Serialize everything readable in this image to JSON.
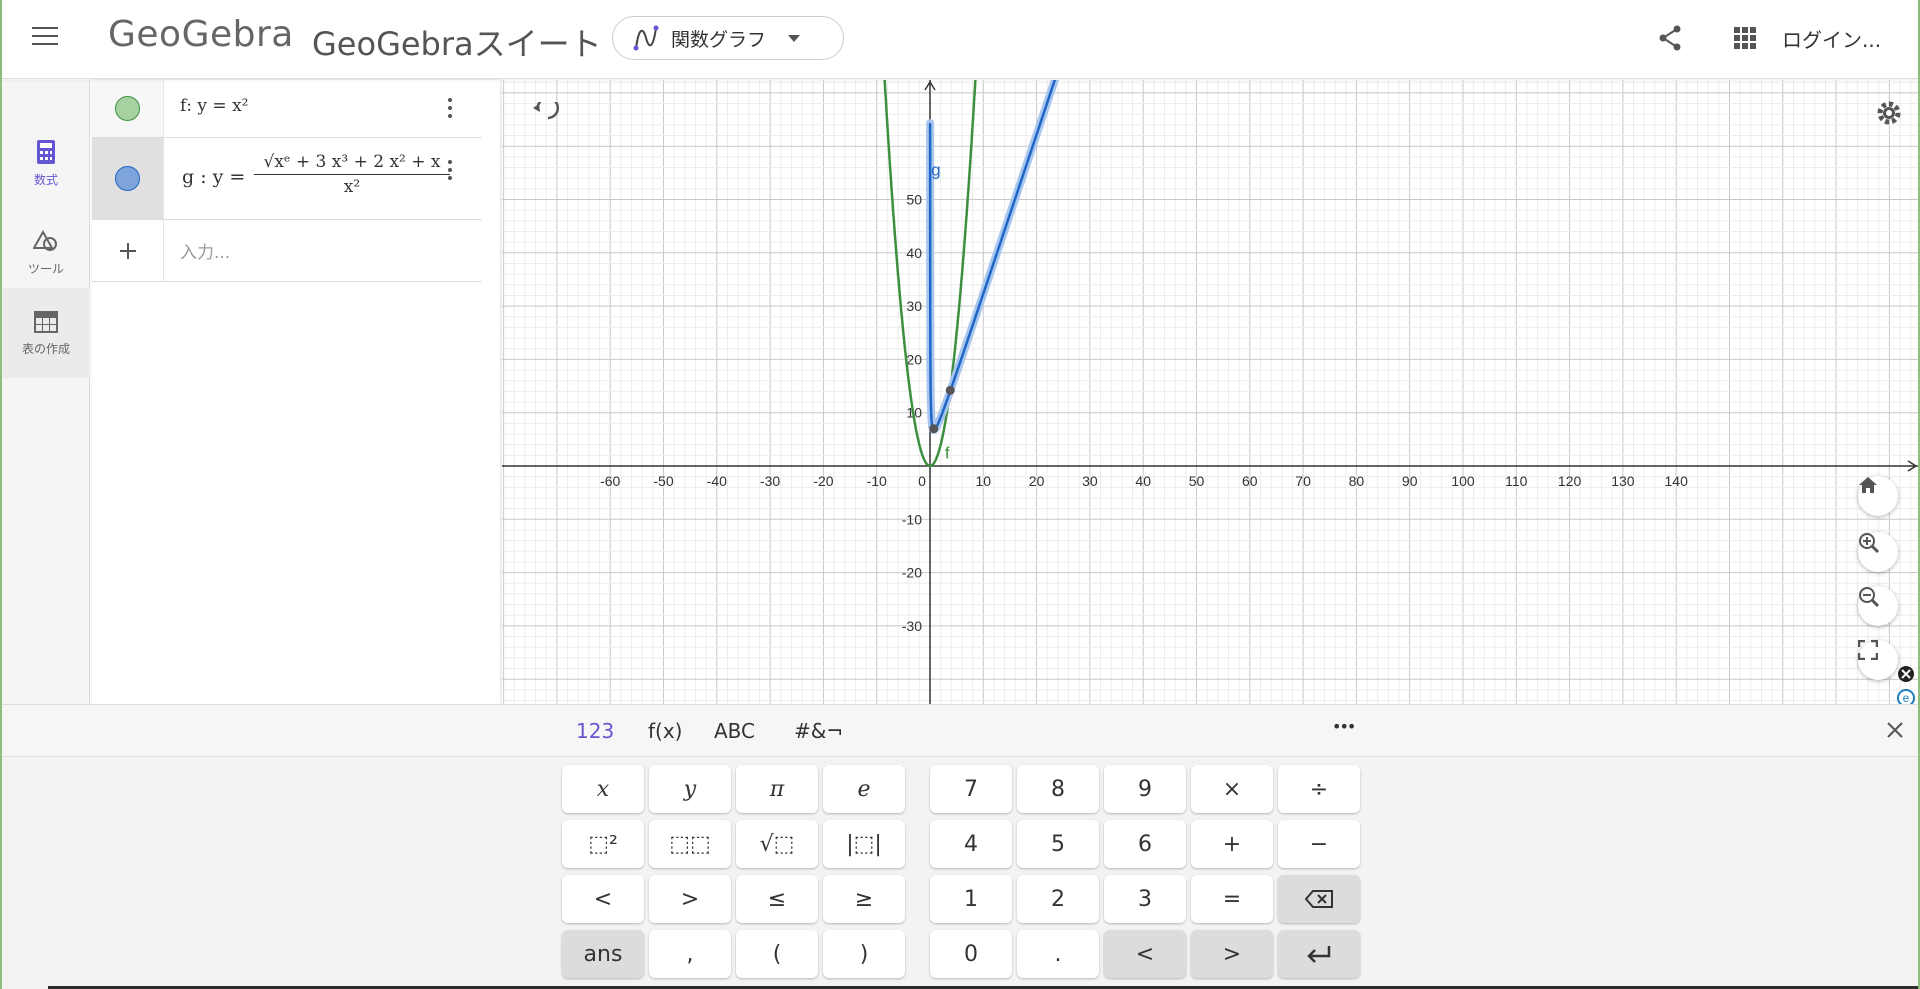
{
  "header": {
    "logo": "GeoGebra",
    "suite_title": "GeoGebraスイート",
    "app_selector": "関数グラフ",
    "login": "ログイン..."
  },
  "rail": {
    "algebra": "数式",
    "tools": "ツール",
    "tables": "表の作成"
  },
  "algebra": {
    "f_expr": "f: y = x²",
    "g_lhs": "g : y =",
    "g_num": "√xᵉ + 3 x³ + 2 x² + x",
    "g_den": "x²",
    "input_placeholder": "入力..."
  },
  "colors": {
    "f_color": "#3d8f40",
    "g_color": "#1f66c7",
    "accent": "#6557d2"
  },
  "graph": {
    "f_label": "f",
    "g_label": "g",
    "x_ticks": [
      "-60",
      "-50",
      "-40",
      "-30",
      "-20",
      "-10",
      "0",
      "10",
      "20",
      "30",
      "40",
      "50",
      "60",
      "70",
      "80",
      "90",
      "100",
      "110",
      "120",
      "130",
      "140"
    ],
    "y_ticks_pos": [
      "50",
      "40",
      "30",
      "20",
      "10"
    ],
    "y_ticks_neg": [
      "-10",
      "-20",
      "-30"
    ]
  },
  "keyboard": {
    "tabs": [
      "123",
      "f(x)",
      "ABC",
      "#&¬"
    ],
    "more": "•••",
    "row1_left": [
      "x",
      "y",
      "π",
      "e"
    ],
    "row2_left": [
      "⬚²",
      "⬚⬚",
      "√⬚",
      "|⬚|"
    ],
    "row3_left": [
      "<",
      ">",
      "≤",
      "≥"
    ],
    "row4_left": [
      "ans",
      ",",
      "(",
      ")"
    ],
    "row1_right": [
      "7",
      "8",
      "9",
      "×",
      "÷"
    ],
    "row2_right": [
      "4",
      "5",
      "6",
      "+",
      "−"
    ],
    "row3_right": [
      "1",
      "2",
      "3",
      "="
    ],
    "row4_right": [
      "0",
      ".",
      "<",
      ">"
    ]
  }
}
